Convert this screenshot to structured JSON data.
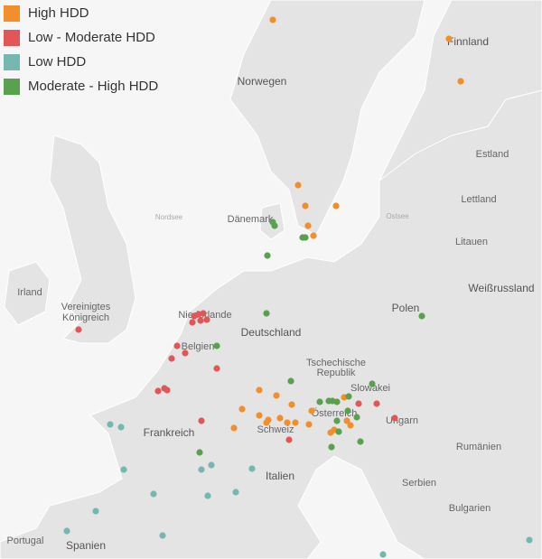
{
  "legend": {
    "items": [
      {
        "label": "High HDD",
        "color": "#f28e2b"
      },
      {
        "label": "Low - Moderate HDD",
        "color": "#e15759"
      },
      {
        "label": "Low HDD",
        "color": "#76b7b2"
      },
      {
        "label": "Moderate - High HDD",
        "color": "#59a14f"
      }
    ]
  },
  "map": {
    "labels": [
      "Finnland",
      "Norwegen",
      "Estland",
      "Lettland",
      "Litauen",
      "Nordsee",
      "Dänemark",
      "Ostsee",
      "Weißrussland",
      "Irland",
      "Vereinigtes",
      "Königreich",
      "Niederlande",
      "Belgien",
      "Deutschland",
      "Polen",
      "Tschechische",
      "Republik",
      "Slowakei",
      "Österreich",
      "Ungarn",
      "Frankreich",
      "Schweiz",
      "Rumänien",
      "Italien",
      "Serbien",
      "Bulgarien",
      "Portugal",
      "Spanien"
    ]
  }
}
